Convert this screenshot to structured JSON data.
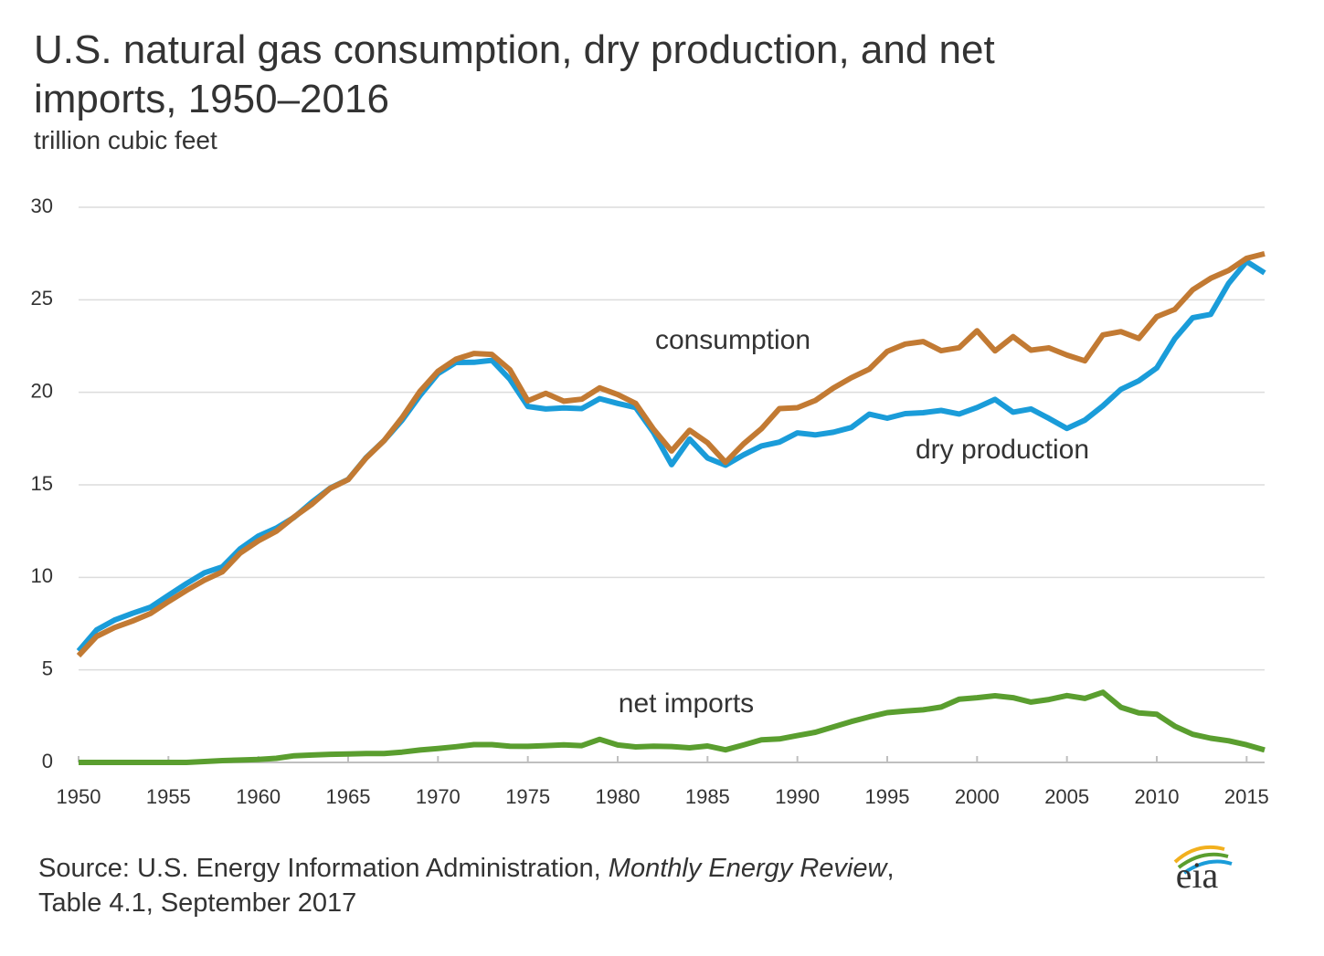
{
  "chart_data": {
    "type": "line",
    "title": "U.S. natural gas consumption, dry production, and net imports, 1950–2016",
    "subtitle": "trillion cubic feet",
    "source": {
      "text": "Source: U.S. Energy Information Administration,",
      "publication": "Monthly Energy Review",
      "after": ",",
      "line2": "Table 4.1, September 2017"
    },
    "logo": "eia",
    "x": [
      1950,
      1951,
      1952,
      1953,
      1954,
      1955,
      1956,
      1957,
      1958,
      1959,
      1960,
      1961,
      1962,
      1963,
      1964,
      1965,
      1966,
      1967,
      1968,
      1969,
      1970,
      1971,
      1972,
      1973,
      1974,
      1975,
      1976,
      1977,
      1978,
      1979,
      1980,
      1981,
      1982,
      1983,
      1984,
      1985,
      1986,
      1987,
      1988,
      1989,
      1990,
      1991,
      1992,
      1993,
      1994,
      1995,
      1996,
      1997,
      1998,
      1999,
      2000,
      2001,
      2002,
      2003,
      2004,
      2005,
      2006,
      2007,
      2008,
      2009,
      2010,
      2011,
      2012,
      2013,
      2014,
      2015,
      2016
    ],
    "series": [
      {
        "name": "dry production",
        "color": "#1a9cd9",
        "values": [
          6.02,
          7.16,
          7.69,
          8.06,
          8.39,
          9.03,
          9.66,
          10.25,
          10.57,
          11.55,
          12.23,
          12.66,
          13.25,
          14.08,
          14.82,
          15.29,
          16.47,
          17.39,
          18.49,
          19.83,
          21.01,
          21.61,
          21.62,
          21.73,
          20.71,
          19.24,
          19.1,
          19.16,
          19.12,
          19.66,
          19.4,
          19.18,
          17.82,
          16.09,
          17.47,
          16.45,
          16.06,
          16.62,
          17.1,
          17.31,
          17.81,
          17.7,
          17.84,
          18.1,
          18.82,
          18.6,
          18.85,
          18.9,
          19.02,
          18.83,
          19.18,
          19.62,
          18.93,
          19.1,
          18.59,
          18.05,
          18.5,
          19.27,
          20.16,
          20.62,
          21.32,
          22.9,
          24.03,
          24.21,
          25.89,
          27.07,
          26.45
        ]
      },
      {
        "name": "consumption",
        "color": "#c27a33",
        "values": [
          5.77,
          6.81,
          7.29,
          7.64,
          8.05,
          8.69,
          9.29,
          9.85,
          10.3,
          11.32,
          11.97,
          12.49,
          13.27,
          13.97,
          14.81,
          15.28,
          16.45,
          17.39,
          18.63,
          20.06,
          21.14,
          21.79,
          22.1,
          22.05,
          21.22,
          19.54,
          19.95,
          19.52,
          19.63,
          20.24,
          19.88,
          19.4,
          18.0,
          16.83,
          17.95,
          17.28,
          16.22,
          17.21,
          18.03,
          19.12,
          19.17,
          19.56,
          20.23,
          20.79,
          21.25,
          22.21,
          22.61,
          22.74,
          22.25,
          22.41,
          23.33,
          22.24,
          23.01,
          22.28,
          22.4,
          22.01,
          21.7,
          23.1,
          23.28,
          22.91,
          24.09,
          24.48,
          25.54,
          26.16,
          26.59,
          27.24,
          27.49
        ]
      },
      {
        "name": "net imports",
        "color": "#5a9e2f",
        "values": [
          0,
          0,
          0,
          0,
          0,
          0,
          0,
          0.05,
          0.1,
          0.13,
          0.16,
          0.22,
          0.36,
          0.4,
          0.44,
          0.46,
          0.48,
          0.48,
          0.56,
          0.67,
          0.75,
          0.85,
          0.96,
          0.96,
          0.88,
          0.87,
          0.91,
          0.95,
          0.91,
          1.25,
          0.94,
          0.84,
          0.88,
          0.86,
          0.79,
          0.89,
          0.68,
          0.94,
          1.22,
          1.27,
          1.45,
          1.63,
          1.92,
          2.21,
          2.46,
          2.69,
          2.78,
          2.84,
          2.99,
          3.42,
          3.5,
          3.6,
          3.5,
          3.26,
          3.4,
          3.61,
          3.46,
          3.79,
          2.98,
          2.68,
          2.6,
          1.96,
          1.52,
          1.31,
          1.17,
          0.95,
          0.67
        ]
      }
    ],
    "xlim": [
      1950,
      2016
    ],
    "ylim": [
      0,
      30
    ],
    "xticks": [
      1950,
      1955,
      1960,
      1965,
      1970,
      1975,
      1980,
      1985,
      1990,
      1995,
      2000,
      2005,
      2010,
      2015
    ],
    "yticks": [
      0,
      5,
      10,
      15,
      20,
      25,
      30
    ],
    "grid": true,
    "legend": false
  }
}
